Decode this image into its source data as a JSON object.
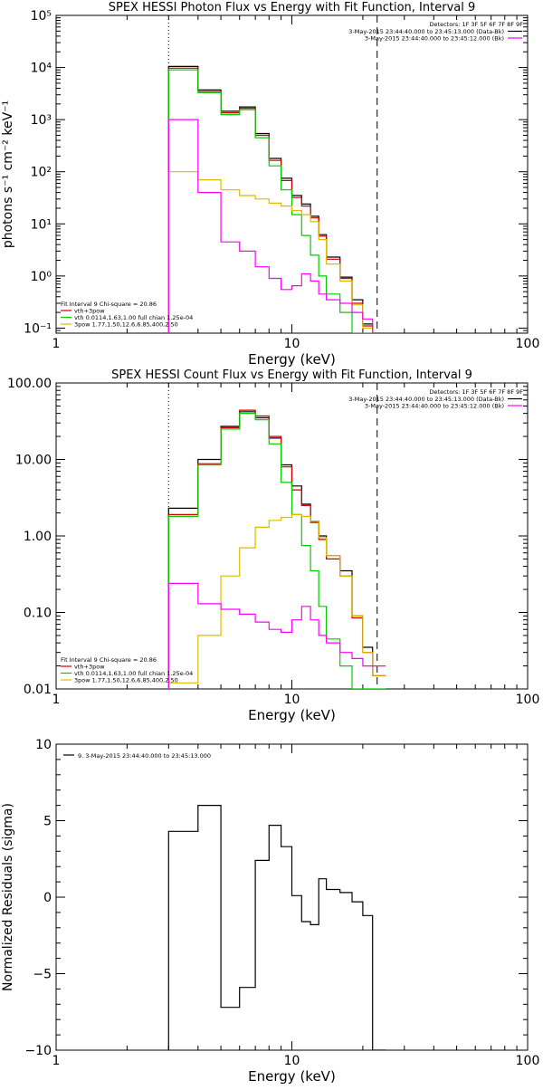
{
  "chart_data": [
    {
      "type": "line",
      "title": "SPEX HESSI Photon Flux vs Energy with Fit Function, Interval 9",
      "xlabel": "Energy (keV)",
      "ylabel": "photons s⁻¹ cm⁻² keV⁻¹",
      "xscale": "log",
      "yscale": "log",
      "xlim": [
        1,
        100
      ],
      "ylim": [
        0.08,
        100000
      ],
      "xticks": [
        1,
        10,
        100
      ],
      "xtick_labels": [
        "1",
        "10",
        "100"
      ],
      "yticks": [
        0.1,
        1,
        10,
        100,
        1000,
        10000,
        100000
      ],
      "ytick_labels": [
        "10⁻¹",
        "10⁰",
        "10¹",
        "10²",
        "10³",
        "10⁴",
        "10⁵"
      ],
      "legend_top": {
        "header": "Detectors: 1F 3F 5F 6F 7F 8F 9F",
        "items": [
          {
            "label": "3-May-2015 23:44:40.000 to 23:45:13.000 (Data-Bk)",
            "color": "#000000"
          },
          {
            "label": "3-May-2015 23:44:40.000 to 23:45:12.000 (Bk)",
            "color": "#ff00ff"
          }
        ]
      },
      "legend_bottom": {
        "header": "Fit Interval 9   Chi-square = 20.86",
        "items": [
          {
            "label": "vth+3pow",
            "color": "#cc0000"
          },
          {
            "label": "vth 0.0114,1.63,1.00  full chian 1.25e-04",
            "color": "#00cc00"
          },
          {
            "label": "3pow 1.77,1.50,12.6,6.85,400,2.50",
            "color": "#ddbb00"
          }
        ]
      },
      "vlines": [
        {
          "x": 3,
          "style": "dotted"
        },
        {
          "x": 23,
          "style": "dashed"
        }
      ],
      "bin_edges": [
        3,
        4,
        5,
        6,
        7,
        8,
        9,
        10,
        11,
        12,
        13,
        14,
        16,
        18,
        20,
        22,
        25
      ],
      "series": [
        {
          "name": "Data-Bk",
          "color": "#000000",
          "values": [
            10500,
            3700,
            1450,
            1750,
            540,
            180,
            75,
            35,
            24,
            14,
            6.2,
            2.3,
            0.95,
            0.35,
            0.12,
            0.08
          ]
        },
        {
          "name": "vth+3pow",
          "color": "#cc0000",
          "values": [
            9700,
            3450,
            1350,
            1650,
            500,
            165,
            68,
            32,
            22,
            13,
            5.8,
            2.1,
            0.9,
            0.3,
            0.11,
            0.08
          ]
        },
        {
          "name": "vth",
          "color": "#00cc00",
          "values": [
            9000,
            3300,
            1250,
            1550,
            450,
            130,
            45,
            15,
            6,
            2.5,
            1,
            0.45,
            0.2,
            0.08,
            0.08,
            0.08
          ]
        },
        {
          "name": "3pow",
          "color": "#ddbb00",
          "values": [
            100,
            70,
            45,
            35,
            30,
            25,
            22,
            18,
            15,
            11,
            5,
            1.7,
            0.8,
            0.28,
            0.1,
            0.08
          ]
        },
        {
          "name": "Bk",
          "color": "#ff00ff",
          "values": [
            1000,
            40,
            4.5,
            3,
            1.5,
            0.9,
            0.55,
            0.65,
            1.1,
            0.8,
            0.45,
            0.35,
            0.3,
            0.2,
            0.15,
            0.08
          ]
        }
      ]
    },
    {
      "type": "line",
      "title": "SPEX HESSI Count Flux vs Energy with Fit Function, Interval 9",
      "xlabel": "Energy (keV)",
      "ylabel": "",
      "xscale": "log",
      "yscale": "log",
      "xlim": [
        1,
        100
      ],
      "ylim": [
        0.01,
        100
      ],
      "xticks": [
        1,
        10,
        100
      ],
      "xtick_labels": [
        "1",
        "10",
        "100"
      ],
      "yticks": [
        0.01,
        0.1,
        1,
        10,
        100
      ],
      "ytick_labels": [
        "0.01",
        "0.10",
        "1.00",
        "10.00",
        "100.00"
      ],
      "legend_top": {
        "header": "Detectors: 1F 3F 5F 6F 7F 8F 9F",
        "items": [
          {
            "label": "3-May-2015 23:44:40.000 to 23:45:13.000 (Data-Bk)",
            "color": "#000000"
          },
          {
            "label": "3-May-2015 23:44:40.000 to 23:45:12.000 (Bk)",
            "color": "#ff00ff"
          }
        ]
      },
      "legend_bottom": {
        "header": "Fit Interval 9   Chi-square = 20.86",
        "items": [
          {
            "label": "vth+3pow",
            "color": "#cc0000"
          },
          {
            "label": "vth 0.0114,1.63,1.00  full chian 1.25e-04",
            "color": "#00cc00"
          },
          {
            "label": "3pow 1.77,1.50,12.6,6.85,400,2.50",
            "color": "#ddbb00"
          }
        ]
      },
      "vlines": [
        {
          "x": 3,
          "style": "dotted"
        },
        {
          "x": 23,
          "style": "dashed"
        }
      ],
      "bin_edges": [
        3,
        4,
        5,
        6,
        7,
        8,
        9,
        10,
        11,
        12,
        13,
        14,
        16,
        18,
        20,
        22,
        25
      ],
      "series": [
        {
          "name": "Data-Bk",
          "color": "#000000",
          "values": [
            2.3,
            10,
            27,
            42,
            35,
            19,
            8.5,
            4.5,
            2.6,
            1.55,
            1.0,
            0.55,
            0.35,
            0.09,
            0.035,
            0.015
          ]
        },
        {
          "name": "vth+3pow",
          "color": "#cc0000",
          "values": [
            1.9,
            8.8,
            26,
            44,
            37,
            20,
            8,
            4,
            2.5,
            1.5,
            0.9,
            0.5,
            0.3,
            0.085,
            0.03,
            0.015
          ]
        },
        {
          "name": "vth",
          "color": "#00cc00",
          "values": [
            1.8,
            8.5,
            25,
            40,
            33,
            16,
            5,
            1.9,
            0.75,
            0.35,
            0.12,
            0.045,
            0.02,
            0.01,
            0.01,
            0.01
          ]
        },
        {
          "name": "3pow",
          "color": "#ddbb00",
          "values": [
            0.012,
            0.05,
            0.3,
            0.7,
            1.3,
            1.6,
            1.75,
            1.9,
            1.8,
            1.55,
            0.95,
            0.55,
            0.3,
            0.09,
            0.03,
            0.015
          ]
        },
        {
          "name": "Bk",
          "color": "#ff00ff",
          "values": [
            0.24,
            0.13,
            0.11,
            0.095,
            0.075,
            0.06,
            0.055,
            0.08,
            0.12,
            0.08,
            0.05,
            0.04,
            0.03,
            0.025,
            0.02,
            0.02
          ]
        }
      ]
    },
    {
      "type": "line",
      "title": "",
      "xlabel": "Energy (keV)",
      "ylabel": "Normalized Residuals (sigma)",
      "xscale": "log",
      "yscale": "linear",
      "xlim": [
        1,
        100
      ],
      "ylim": [
        -10,
        10
      ],
      "xticks": [
        1,
        10,
        100
      ],
      "xtick_labels": [
        "1",
        "10",
        "100"
      ],
      "yticks": [
        -10,
        -5,
        0,
        5,
        10
      ],
      "ytick_labels": [
        "−10",
        "−5",
        "0",
        "5",
        "10"
      ],
      "legend_top": {
        "header": "",
        "items": [
          {
            "label": "9. 3-May-2015 23:44:40.000 to 23:45:13.000",
            "color": "#000000"
          }
        ]
      },
      "bin_edges": [
        3,
        4,
        5,
        6,
        7,
        8,
        9,
        10,
        11,
        12,
        13,
        14,
        16,
        18,
        20,
        22,
        25
      ],
      "series": [
        {
          "name": "9. 3-May-2015 23:44:40.000 to 23:45:13.000",
          "color": "#000000",
          "values": [
            4.3,
            6.0,
            -7.2,
            -5.9,
            2.4,
            4.7,
            3.3,
            0.1,
            -1.6,
            -1.8,
            1.2,
            0.5,
            0.3,
            -0.3,
            -1.2,
            -10
          ]
        }
      ]
    }
  ]
}
